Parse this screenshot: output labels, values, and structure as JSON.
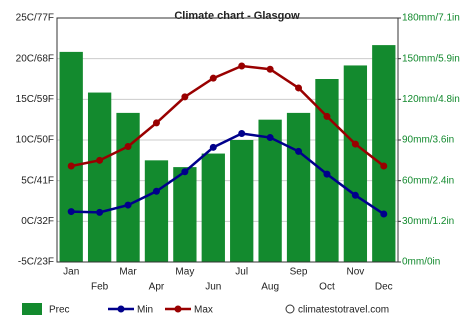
{
  "chart_data": {
    "type": "combo",
    "title": "Climate chart - Glasgow",
    "categories": [
      "Jan",
      "Feb",
      "Mar",
      "Apr",
      "May",
      "Jun",
      "Jul",
      "Aug",
      "Sep",
      "Oct",
      "Nov",
      "Dec"
    ],
    "series": [
      {
        "name": "Prec",
        "type": "bar",
        "axis": "y2",
        "color": "#138a2e",
        "values": [
          155,
          125,
          110,
          75,
          70,
          80,
          90,
          105,
          110,
          135,
          145,
          160
        ]
      },
      {
        "name": "Min",
        "type": "line",
        "color": "#00008b",
        "values": [
          1.2,
          1.1,
          2.0,
          3.7,
          6.1,
          9.1,
          10.8,
          10.3,
          8.6,
          5.8,
          3.2,
          0.9
        ]
      },
      {
        "name": "Max",
        "type": "line",
        "color": "#990000",
        "values": [
          6.8,
          7.5,
          9.2,
          12.1,
          15.3,
          17.6,
          19.1,
          18.7,
          16.4,
          12.9,
          9.5,
          6.8
        ]
      }
    ],
    "ylim": [
      -5,
      25
    ],
    "yticks": [
      {
        "value": -5,
        "label": "-5C/23F"
      },
      {
        "value": 0,
        "label": "0C/32F"
      },
      {
        "value": 5,
        "label": "5C/41F"
      },
      {
        "value": 10,
        "label": "10C/50F"
      },
      {
        "value": 15,
        "label": "15C/59F"
      },
      {
        "value": 20,
        "label": "20C/68F"
      },
      {
        "value": 25,
        "label": "25C/77F"
      }
    ],
    "y2lim": [
      0,
      180
    ],
    "y2ticks": [
      {
        "value": 0,
        "label": "0mm/0in"
      },
      {
        "value": 30,
        "label": "30mm/1.2in"
      },
      {
        "value": 60,
        "label": "60mm/2.4in"
      },
      {
        "value": 90,
        "label": "90mm/3.6in"
      },
      {
        "value": 120,
        "label": "120mm/4.8in"
      },
      {
        "value": 150,
        "label": "150mm/5.9in"
      },
      {
        "value": 180,
        "label": "180mm/7.1in"
      }
    ],
    "grid": true,
    "watermark": "climatestotravel.com"
  }
}
